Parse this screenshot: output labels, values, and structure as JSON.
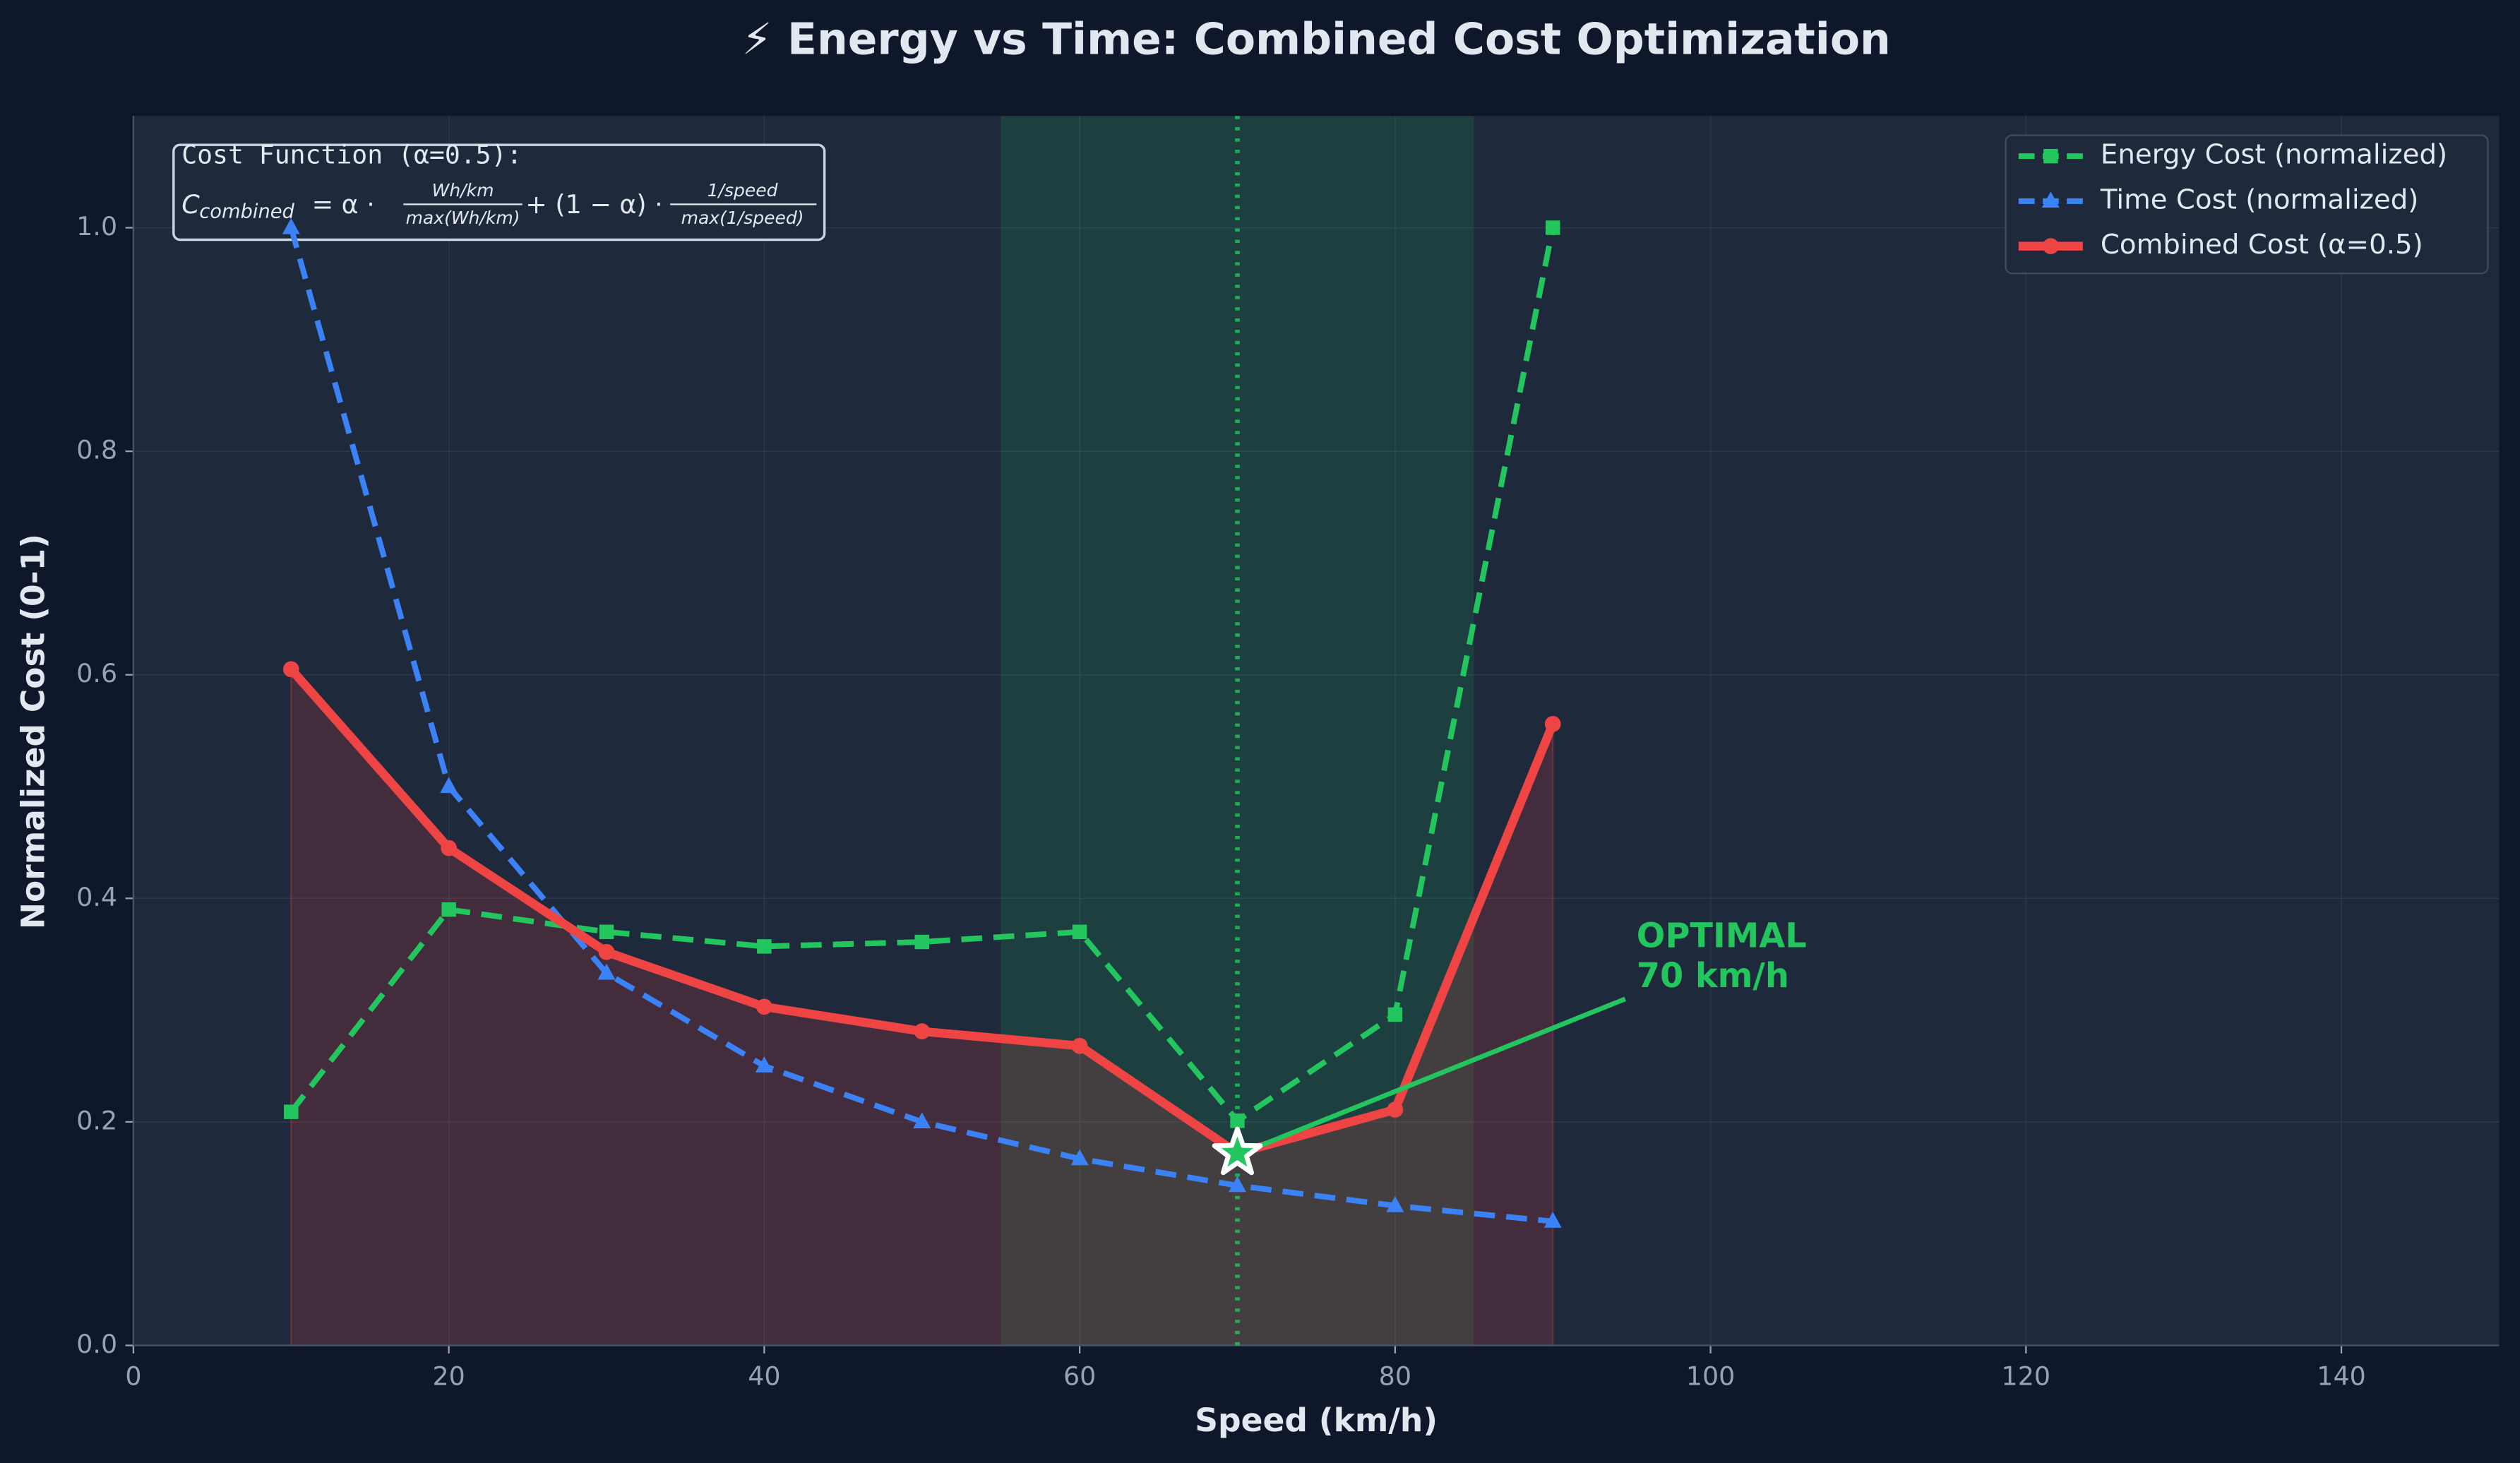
{
  "chart_data": {
    "type": "line",
    "title": "⚡ Energy vs Time: Combined Cost Optimization",
    "x_label": "Speed (km/h)",
    "y_label": "Normalized Cost (0-1)",
    "x": [
      10,
      20,
      30,
      40,
      50,
      60,
      70,
      80,
      90
    ],
    "series": [
      {
        "name": "Energy Cost (normalized)",
        "color": "#22c55e",
        "marker": "square",
        "dashed": true,
        "values": [
          0.209,
          0.39,
          0.37,
          0.357,
          0.361,
          0.37,
          0.201,
          0.296,
          1.0
        ]
      },
      {
        "name": "Time Cost (normalized)",
        "color": "#3b82f6",
        "marker": "triangle",
        "dashed": true,
        "values": [
          1.0,
          0.5,
          0.333,
          0.25,
          0.2,
          0.167,
          0.143,
          0.125,
          0.111
        ]
      },
      {
        "name": "Combined Cost (α=0.5)",
        "color": "#ef4444",
        "marker": "circle",
        "dashed": false,
        "fill": true,
        "values": [
          0.605,
          0.445,
          0.352,
          0.303,
          0.281,
          0.268,
          0.172,
          0.211,
          0.556
        ]
      }
    ],
    "xlim": [
      0,
      150
    ],
    "xticks": [
      0,
      20,
      40,
      60,
      80,
      100,
      120,
      140
    ],
    "ylim": [
      0,
      1.1
    ],
    "yticks": [
      {
        "value": 0,
        "label": "0.0"
      },
      0.2,
      0.4,
      0.6,
      0.8,
      {
        "value": 1,
        "label": "1.0"
      }
    ],
    "grid": true,
    "legend": "upper right",
    "highlight_range": [
      55,
      85
    ],
    "optimal_speed": 70,
    "optimal_index": 6,
    "annotation": {
      "lines": [
        "OPTIMAL",
        "70 km/h"
      ],
      "x": 95,
      "y": 0.31
    },
    "formula_box": {
      "title": "Cost Function (α=0.5):",
      "parts": [
        "C",
        "combined",
        "= α ·",
        "Wh/km",
        "max(Wh/km)",
        "+ (1 − α) ·",
        "1/speed",
        "max(1/speed)"
      ]
    }
  }
}
